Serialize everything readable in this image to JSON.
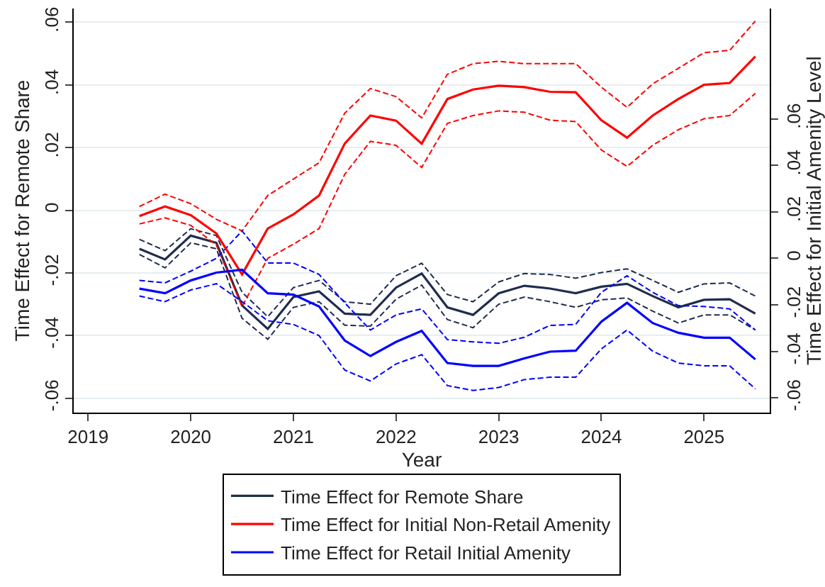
{
  "chart_data": {
    "type": "line",
    "xlabel": "Year",
    "ylabel": "Time Effect for Remote Share",
    "y2label": "Time Effect for Initial Amenity Level",
    "x": [
      2019.5,
      2019.75,
      2020,
      2020.25,
      2020.5,
      2020.75,
      2021,
      2021.25,
      2021.5,
      2021.75,
      2022,
      2022.25,
      2022.5,
      2022.75,
      2023,
      2023.25,
      2023.5,
      2023.75,
      2024,
      2024.25,
      2024.5,
      2024.75,
      2025,
      2025.25,
      2025.5
    ],
    "series": [
      {
        "color": "#1f2d4d",
        "line_style": "dashed",
        "values": [
          -0.0093,
          -0.0129,
          -0.0059,
          -0.0081,
          -0.0262,
          -0.034,
          -0.0247,
          -0.0224,
          -0.0292,
          -0.03,
          -0.0209,
          -0.0169,
          -0.0269,
          -0.0292,
          -0.0229,
          -0.0202,
          -0.0205,
          -0.0217,
          -0.0199,
          -0.0187,
          -0.0224,
          -0.0262,
          -0.0235,
          -0.0232,
          -0.0274
        ]
      },
      {
        "color": "#1f2d4d",
        "line_style": "dashed",
        "values": [
          -0.0141,
          -0.0184,
          -0.0104,
          -0.0123,
          -0.0345,
          -0.0412,
          -0.031,
          -0.0292,
          -0.0367,
          -0.037,
          -0.0284,
          -0.0239,
          -0.0349,
          -0.0375,
          -0.03,
          -0.0277,
          -0.0292,
          -0.031,
          -0.0286,
          -0.028,
          -0.0322,
          -0.036,
          -0.0334,
          -0.0334,
          -0.0382
        ]
      },
      {
        "color": "#ff0000",
        "axis": "y2",
        "line_style": "dashed",
        "values": [
          0.0223,
          0.0276,
          0.0235,
          0.0168,
          0.0118,
          0.027,
          0.0341,
          0.0411,
          0.0624,
          0.073,
          0.0695,
          0.0604,
          0.0791,
          0.0837,
          0.0847,
          0.0837,
          0.0837,
          0.0837,
          0.0736,
          0.0649,
          0.075,
          0.0817,
          0.0884,
          0.0894,
          0.102
        ]
      },
      {
        "color": "#ff0000",
        "axis": "y2",
        "line_style": "dashed",
        "values": [
          0.0148,
          0.0174,
          0.0142,
          0.0057,
          -0.0207,
          0,
          0.0061,
          0.0128,
          0.0361,
          0.0503,
          0.0486,
          0.0391,
          0.058,
          0.0614,
          0.0634,
          0.0628,
          0.0594,
          0.0588,
          0.0466,
          0.0395,
          0.0486,
          0.0553,
          0.06,
          0.0614,
          0.0709
        ]
      },
      {
        "color": "#0000ff",
        "axis": "y2",
        "line_style": "dashed",
        "values": [
          -0.0095,
          -0.0105,
          -0.0055,
          0,
          0.0118,
          -0.002,
          -0.002,
          -0.0069,
          -0.0191,
          -0.0308,
          -0.0243,
          -0.0217,
          -0.0349,
          -0.0359,
          -0.0365,
          -0.0339,
          -0.0288,
          -0.0284,
          -0.0146,
          -0.0075,
          -0.0146,
          -0.0203,
          -0.0207,
          -0.0217,
          -0.0308
        ]
      },
      {
        "color": "#0000ff",
        "axis": "y2",
        "line_style": "dashed",
        "values": [
          -0.0162,
          -0.0186,
          -0.0136,
          -0.0109,
          -0.0186,
          -0.0268,
          -0.0284,
          -0.0332,
          -0.048,
          -0.0527,
          -0.0454,
          -0.0414,
          -0.0547,
          -0.0568,
          -0.0555,
          -0.0521,
          -0.0511,
          -0.0511,
          -0.0389,
          -0.0308,
          -0.0399,
          -0.045,
          -0.0462,
          -0.0462,
          -0.0561
        ]
      },
      {
        "name": "Time Effect for Remote Share",
        "color": "#1f2d4d",
        "values": [
          -0.0123,
          -0.0157,
          -0.0081,
          -0.0104,
          -0.0304,
          -0.0379,
          -0.0277,
          -0.0259,
          -0.033,
          -0.0334,
          -0.0247,
          -0.0202,
          -0.031,
          -0.0334,
          -0.0265,
          -0.0241,
          -0.025,
          -0.0265,
          -0.0244,
          -0.0235,
          -0.0274,
          -0.031,
          -0.0286,
          -0.0284,
          -0.033
        ]
      },
      {
        "name": "Time Effect for Initial Non-Retail Amenity",
        "color": "#ff0000",
        "axis": "y2",
        "values": [
          0.0182,
          0.0223,
          0.0186,
          0.0107,
          -0.0069,
          0.0128,
          0.0189,
          0.027,
          0.0493,
          0.0614,
          0.0592,
          0.0493,
          0.0685,
          0.0726,
          0.0742,
          0.0736,
          0.0716,
          0.0714,
          0.0594,
          0.0519,
          0.0614,
          0.0685,
          0.0746,
          0.0754,
          0.0868
        ]
      },
      {
        "name": "Time Effect for Retail Initial Amenity",
        "color": "#0000ff",
        "axis": "y2",
        "values": [
          -0.013,
          -0.015,
          -0.0095,
          -0.0061,
          -0.0049,
          -0.015,
          -0.0156,
          -0.0207,
          -0.0353,
          -0.042,
          -0.0359,
          -0.0312,
          -0.045,
          -0.0462,
          -0.0462,
          -0.043,
          -0.0401,
          -0.0397,
          -0.0272,
          -0.0191,
          -0.0278,
          -0.032,
          -0.0341,
          -0.0341,
          -0.0434
        ]
      }
    ],
    "xlim": [
      2018.86,
      2025.64
    ],
    "xticks": [
      2019,
      2020,
      2021,
      2022,
      2023,
      2024,
      2025
    ],
    "ylim": [
      -0.0646,
      0.0644
    ],
    "yticks": [
      {
        "value": -0.06,
        "label": "-.06"
      },
      {
        "value": -0.04,
        "label": "-.04"
      },
      {
        "value": -0.02,
        "label": "-.02"
      },
      0,
      {
        "value": 0.02,
        "label": ".02"
      },
      {
        "value": 0.04,
        "label": ".04"
      },
      {
        "value": 0.06,
        "label": ".06"
      }
    ],
    "y2lim": [
      -0.0663,
      0.1074
    ],
    "y2ticks": [
      {
        "value": -0.06,
        "label": "-.06"
      },
      {
        "value": -0.04,
        "label": "-.04"
      },
      {
        "value": -0.02,
        "label": "-.02"
      },
      0,
      {
        "value": 0.02,
        "label": ".02"
      },
      {
        "value": 0.04,
        "label": ".04"
      },
      {
        "value": 0.06,
        "label": ".06"
      }
    ],
    "grid": "y",
    "legend": "bottom",
    "line_style": "solid",
    "marker": "none"
  }
}
